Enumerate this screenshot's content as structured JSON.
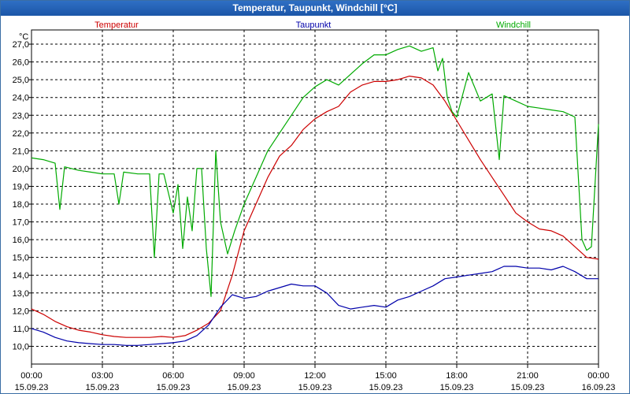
{
  "window": {
    "title": "Temperatur, Taupunkt, Windchill [°C]"
  },
  "chart_data": {
    "type": "line",
    "title": "Temperatur, Taupunkt, Windchill [°C]",
    "ylabel": "°C",
    "xlabel": "",
    "ylim": [
      9.0,
      27.8
    ],
    "xlim": [
      0,
      24
    ],
    "grid": true,
    "legend": "top",
    "y_ticks": [
      {
        "v": 10.0,
        "label": "10,0"
      },
      {
        "v": 11.0,
        "label": "11,0"
      },
      {
        "v": 12.0,
        "label": "12,0"
      },
      {
        "v": 13.0,
        "label": "13,0"
      },
      {
        "v": 14.0,
        "label": "14,0"
      },
      {
        "v": 15.0,
        "label": "15,0"
      },
      {
        "v": 16.0,
        "label": "16,0"
      },
      {
        "v": 17.0,
        "label": "17,0"
      },
      {
        "v": 18.0,
        "label": "18,0"
      },
      {
        "v": 19.0,
        "label": "19,0"
      },
      {
        "v": 20.0,
        "label": "20,0"
      },
      {
        "v": 21.0,
        "label": "21,0"
      },
      {
        "v": 22.0,
        "label": "22,0"
      },
      {
        "v": 23.0,
        "label": "23,0"
      },
      {
        "v": 24.0,
        "label": "24,0"
      },
      {
        "v": 25.0,
        "label": "25,0"
      },
      {
        "v": 26.0,
        "label": "26,0"
      },
      {
        "v": 27.0,
        "label": "27,0"
      }
    ],
    "x_ticks": [
      {
        "h": 0,
        "time": "00:00",
        "date": "15.09.23"
      },
      {
        "h": 3,
        "time": "03:00",
        "date": "15.09.23"
      },
      {
        "h": 6,
        "time": "06:00",
        "date": "15.09.23"
      },
      {
        "h": 9,
        "time": "09:00",
        "date": "15.09.23"
      },
      {
        "h": 12,
        "time": "12:00",
        "date": "15.09.23"
      },
      {
        "h": 15,
        "time": "15:00",
        "date": "15.09.23"
      },
      {
        "h": 18,
        "time": "18:00",
        "date": "15.09.23"
      },
      {
        "h": 21,
        "time": "21:00",
        "date": "15.09.23"
      },
      {
        "h": 24,
        "time": "00:00",
        "date": "16.09.23"
      }
    ],
    "series": [
      {
        "name": "Temperatur",
        "color": "#cc0000",
        "x": [
          0,
          0.5,
          1.0,
          1.5,
          2.0,
          2.5,
          3.0,
          3.5,
          4.0,
          4.5,
          5.0,
          5.5,
          6.0,
          6.5,
          7.0,
          7.5,
          8.0,
          8.5,
          9.0,
          9.5,
          10.0,
          10.5,
          11.0,
          11.5,
          12.0,
          12.5,
          13.0,
          13.5,
          14.0,
          14.5,
          15.0,
          15.5,
          16.0,
          16.5,
          17.0,
          17.5,
          18.0,
          18.5,
          19.0,
          19.5,
          20.0,
          20.5,
          21.0,
          21.5,
          22.0,
          22.5,
          23.0,
          23.5,
          24.0
        ],
        "values": [
          12.1,
          11.8,
          11.4,
          11.1,
          10.9,
          10.8,
          10.65,
          10.55,
          10.5,
          10.5,
          10.5,
          10.55,
          10.5,
          10.6,
          10.9,
          11.3,
          12.0,
          14.0,
          16.5,
          18.0,
          19.5,
          20.7,
          21.3,
          22.2,
          22.8,
          23.2,
          23.5,
          24.3,
          24.7,
          24.9,
          24.9,
          25.0,
          25.2,
          25.1,
          24.7,
          23.8,
          22.7,
          21.6,
          20.5,
          19.5,
          18.5,
          17.5,
          17.0,
          16.6,
          16.5,
          16.2,
          15.6,
          15.0,
          14.9
        ]
      },
      {
        "name": "Taupunkt",
        "color": "#0000aa",
        "x": [
          0,
          0.5,
          1.0,
          1.5,
          2.0,
          2.5,
          3.0,
          3.5,
          4.0,
          4.5,
          5.0,
          5.5,
          6.0,
          6.5,
          7.0,
          7.5,
          8.0,
          8.5,
          9.0,
          9.5,
          10.0,
          10.5,
          11.0,
          11.5,
          12.0,
          12.5,
          13.0,
          13.5,
          14.0,
          14.5,
          15.0,
          15.5,
          16.0,
          16.5,
          17.0,
          17.5,
          18.0,
          18.5,
          19.0,
          19.5,
          20.0,
          20.5,
          21.0,
          21.5,
          22.0,
          22.5,
          23.0,
          23.5,
          24.0
        ],
        "values": [
          11.0,
          10.8,
          10.5,
          10.3,
          10.2,
          10.15,
          10.1,
          10.1,
          10.05,
          10.05,
          10.1,
          10.15,
          10.2,
          10.3,
          10.6,
          11.2,
          12.2,
          12.9,
          12.7,
          12.8,
          13.1,
          13.3,
          13.5,
          13.4,
          13.4,
          13.0,
          12.3,
          12.1,
          12.2,
          12.3,
          12.2,
          12.6,
          12.8,
          13.1,
          13.4,
          13.8,
          13.9,
          14.0,
          14.1,
          14.2,
          14.5,
          14.5,
          14.4,
          14.4,
          14.3,
          14.5,
          14.2,
          13.8,
          13.8
        ]
      },
      {
        "name": "Windchill",
        "color": "#00aa00",
        "x": [
          0,
          0.5,
          1.0,
          1.2,
          1.4,
          2.0,
          2.5,
          3.0,
          3.5,
          3.7,
          3.9,
          4.5,
          5.0,
          5.2,
          5.4,
          5.6,
          5.8,
          6.0,
          6.2,
          6.4,
          6.6,
          6.8,
          7.0,
          7.2,
          7.4,
          7.6,
          7.8,
          8.0,
          8.3,
          8.6,
          9.0,
          9.5,
          10.0,
          10.5,
          11.0,
          11.5,
          12.0,
          12.5,
          13.0,
          13.5,
          14.0,
          14.5,
          15.0,
          15.5,
          16.0,
          16.5,
          17.0,
          17.2,
          17.4,
          17.6,
          17.8,
          18.0,
          18.5,
          19.0,
          19.5,
          19.8,
          20.0,
          20.5,
          21.0,
          21.5,
          22.0,
          22.5,
          23.0,
          23.3,
          23.5,
          23.7,
          24.0
        ],
        "values": [
          20.6,
          20.5,
          20.3,
          17.7,
          20.1,
          19.9,
          19.8,
          19.7,
          19.7,
          18.0,
          19.8,
          19.7,
          19.7,
          15.0,
          19.7,
          19.7,
          18.6,
          17.5,
          19.1,
          15.5,
          18.4,
          16.5,
          20.0,
          20.0,
          15.5,
          12.8,
          21.0,
          17.0,
          15.2,
          16.5,
          18.0,
          19.5,
          21.0,
          22.0,
          23.0,
          24.0,
          24.6,
          25.0,
          24.7,
          25.3,
          25.9,
          26.4,
          26.4,
          26.7,
          26.9,
          26.6,
          26.8,
          25.5,
          26.2,
          24.0,
          23.2,
          22.9,
          25.4,
          23.8,
          24.2,
          20.5,
          24.1,
          23.8,
          23.5,
          23.4,
          23.3,
          23.2,
          22.9,
          16.0,
          15.4,
          15.6,
          22.5
        ]
      }
    ]
  }
}
